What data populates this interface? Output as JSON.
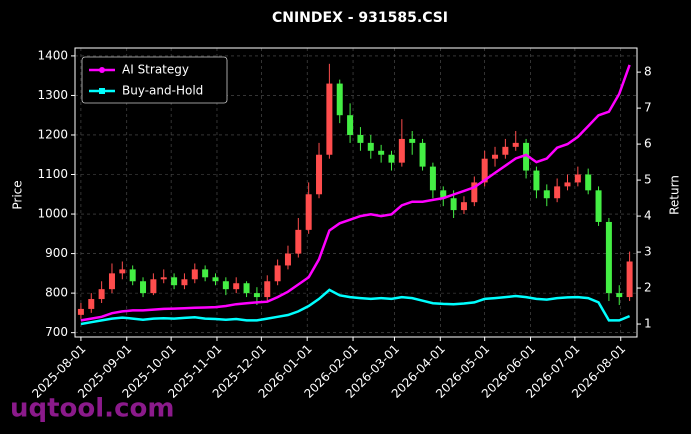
{
  "chart_data": {
    "type": "candlestick",
    "title": "CNINDEX - 931585.CSI",
    "ylabel": "Price",
    "y2label": "Return",
    "watermark": "uqtool.com",
    "x": [
      "2025-08-01",
      "2025-08-08",
      "2025-08-15",
      "2025-08-22",
      "2025-08-29",
      "2025-09-05",
      "2025-09-12",
      "2025-09-19",
      "2025-09-26",
      "2025-10-03",
      "2025-10-10",
      "2025-10-17",
      "2025-10-24",
      "2025-10-31",
      "2025-11-07",
      "2025-11-14",
      "2025-11-21",
      "2025-11-28",
      "2025-12-05",
      "2025-12-12",
      "2025-12-19",
      "2025-12-26",
      "2026-01-02",
      "2026-01-09",
      "2026-01-16",
      "2026-01-23",
      "2026-01-30",
      "2026-02-06",
      "2026-02-13",
      "2026-02-20",
      "2026-02-27",
      "2026-03-06",
      "2026-03-13",
      "2026-03-20",
      "2026-03-27",
      "2026-04-03",
      "2026-04-10",
      "2026-04-17",
      "2026-04-24",
      "2026-05-01",
      "2026-05-08",
      "2026-05-15",
      "2026-05-22",
      "2026-05-29",
      "2026-06-05",
      "2026-06-12",
      "2026-06-19",
      "2026-06-26",
      "2026-07-03",
      "2026-07-10",
      "2026-07-17",
      "2026-07-24",
      "2026-07-31",
      "2026-08-07"
    ],
    "open": [
      745,
      760,
      785,
      810,
      850,
      860,
      830,
      800,
      835,
      840,
      820,
      835,
      860,
      840,
      830,
      810,
      825,
      800,
      790,
      830,
      870,
      900,
      960,
      1050,
      1150,
      1330,
      1250,
      1200,
      1180,
      1160,
      1150,
      1130,
      1190,
      1180,
      1120,
      1060,
      1040,
      1010,
      1030,
      1080,
      1140,
      1150,
      1170,
      1180,
      1110,
      1060,
      1040,
      1070,
      1080,
      1100,
      1060,
      980,
      800,
      790
    ],
    "high": [
      775,
      800,
      830,
      875,
      880,
      870,
      840,
      850,
      860,
      850,
      850,
      875,
      870,
      850,
      840,
      840,
      830,
      815,
      845,
      885,
      920,
      990,
      1080,
      1180,
      1380,
      1340,
      1280,
      1220,
      1200,
      1175,
      1160,
      1240,
      1210,
      1190,
      1130,
      1070,
      1060,
      1045,
      1095,
      1160,
      1170,
      1190,
      1210,
      1190,
      1120,
      1075,
      1090,
      1100,
      1120,
      1115,
      1070,
      990,
      820,
      905
    ],
    "low": [
      735,
      750,
      775,
      800,
      835,
      820,
      790,
      795,
      825,
      810,
      810,
      825,
      830,
      820,
      795,
      800,
      790,
      770,
      780,
      820,
      860,
      890,
      950,
      1040,
      1140,
      1230,
      1180,
      1160,
      1140,
      1130,
      1110,
      1120,
      1150,
      1110,
      1040,
      1020,
      990,
      1000,
      1020,
      1070,
      1120,
      1140,
      1160,
      1090,
      1040,
      1020,
      1030,
      1060,
      1070,
      1050,
      970,
      780,
      770,
      780
    ],
    "close": [
      760,
      785,
      810,
      850,
      860,
      830,
      800,
      835,
      840,
      820,
      835,
      860,
      840,
      830,
      810,
      825,
      800,
      790,
      830,
      870,
      900,
      960,
      1050,
      1150,
      1330,
      1250,
      1200,
      1180,
      1160,
      1150,
      1130,
      1190,
      1180,
      1120,
      1060,
      1040,
      1010,
      1030,
      1080,
      1140,
      1150,
      1170,
      1180,
      1110,
      1060,
      1040,
      1070,
      1080,
      1100,
      1060,
      980,
      800,
      790,
      880
    ],
    "up_color": "#ff4d4d",
    "down_color": "#44ee44",
    "series": [
      {
        "name": "AI Strategy",
        "color": "#ff00ff",
        "axis": "y2",
        "values": [
          1.1,
          1.15,
          1.2,
          1.3,
          1.35,
          1.38,
          1.38,
          1.4,
          1.42,
          1.43,
          1.44,
          1.45,
          1.46,
          1.47,
          1.5,
          1.55,
          1.58,
          1.6,
          1.62,
          1.75,
          1.9,
          2.1,
          2.3,
          2.8,
          3.6,
          3.8,
          3.9,
          4.0,
          4.05,
          4.0,
          4.05,
          4.3,
          4.4,
          4.4,
          4.45,
          4.5,
          4.6,
          4.7,
          4.8,
          5.0,
          5.2,
          5.4,
          5.6,
          5.7,
          5.5,
          5.6,
          5.9,
          6.0,
          6.2,
          6.5,
          6.8,
          6.9,
          7.4,
          8.2
        ]
      },
      {
        "name": "Buy-and-Hold",
        "color": "#00ffff",
        "axis": "y2",
        "values": [
          1.0,
          1.05,
          1.1,
          1.15,
          1.18,
          1.15,
          1.12,
          1.15,
          1.16,
          1.15,
          1.17,
          1.19,
          1.15,
          1.14,
          1.12,
          1.14,
          1.1,
          1.1,
          1.15,
          1.2,
          1.25,
          1.35,
          1.5,
          1.7,
          1.95,
          1.8,
          1.75,
          1.72,
          1.7,
          1.72,
          1.7,
          1.75,
          1.72,
          1.65,
          1.58,
          1.56,
          1.55,
          1.57,
          1.6,
          1.7,
          1.72,
          1.75,
          1.78,
          1.75,
          1.7,
          1.68,
          1.72,
          1.74,
          1.75,
          1.72,
          1.6,
          1.1,
          1.1,
          1.22
        ]
      }
    ],
    "xlim": [
      "2025-07-28",
      "2026-08-12"
    ],
    "xticks": [
      "2025-08-01",
      "2025-09-01",
      "2025-10-01",
      "2025-11-01",
      "2025-12-01",
      "2026-01-01",
      "2026-02-01",
      "2026-03-01",
      "2026-04-01",
      "2026-05-01",
      "2026-06-01",
      "2026-07-01",
      "2026-08-01"
    ],
    "ylim": [
      689,
      1420
    ],
    "yticks": [
      700,
      800,
      900,
      1000,
      1100,
      1200,
      1300,
      1400
    ],
    "y2lim": [
      0.64,
      8.67
    ],
    "y2ticks": [
      1,
      2,
      3,
      4,
      5,
      6,
      7,
      8
    ],
    "grid": true,
    "legend": "upper left"
  }
}
